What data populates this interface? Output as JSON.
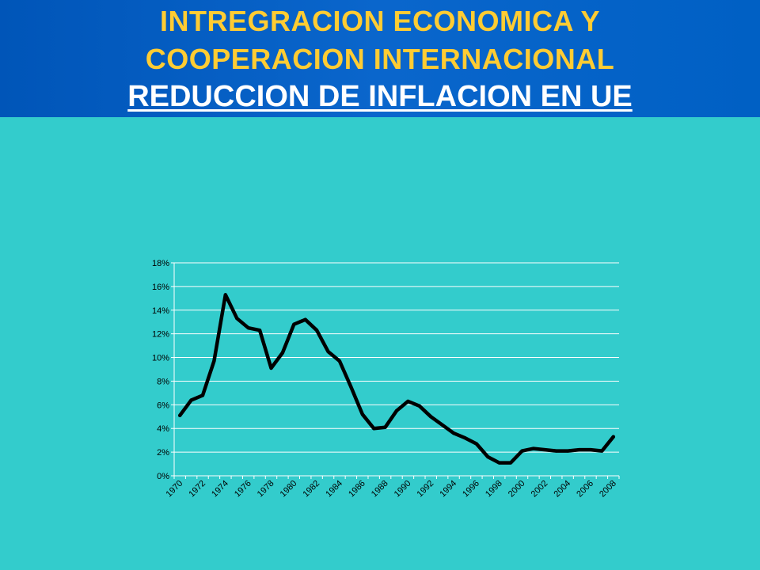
{
  "header": {
    "title_line1": "INTREGRACION ECONOMICA Y",
    "title_line2": "COOPERACION INTERNACIONAL",
    "subtitle": "REDUCCION DE INFLACION EN UE"
  },
  "colors": {
    "background": "#33cccc",
    "header": "#0060c4",
    "title": "#ffcc33",
    "series": "#000000",
    "grid": "#ffffff"
  },
  "chart_data": {
    "type": "line",
    "title": "",
    "xlabel": "",
    "ylabel": "",
    "grid": true,
    "ylim": [
      0,
      18
    ],
    "y_ticks": [
      "0%",
      "2%",
      "4%",
      "6%",
      "8%",
      "10%",
      "12%",
      "14%",
      "16%",
      "18%"
    ],
    "x_tick_labels": [
      "1970",
      "1972",
      "1974",
      "1976",
      "1978",
      "1980",
      "1982",
      "1984",
      "1986",
      "1988",
      "1990",
      "1992",
      "1994",
      "1996",
      "1998",
      "2000",
      "2002",
      "2004",
      "2006",
      "2008"
    ],
    "x": [
      1970,
      1971,
      1972,
      1973,
      1974,
      1975,
      1976,
      1977,
      1978,
      1979,
      1980,
      1981,
      1982,
      1983,
      1984,
      1985,
      1986,
      1987,
      1988,
      1989,
      1990,
      1991,
      1992,
      1993,
      1994,
      1995,
      1996,
      1997,
      1998,
      1999,
      2000,
      2001,
      2002,
      2003,
      2004,
      2005,
      2006,
      2007,
      2008
    ],
    "series": [
      {
        "values": [
          5.1,
          6.4,
          6.8,
          9.7,
          15.3,
          13.3,
          12.5,
          12.3,
          9.1,
          10.4,
          12.8,
          13.2,
          12.3,
          10.5,
          9.7,
          7.5,
          5.2,
          4.0,
          4.1,
          5.5,
          6.3,
          5.9,
          5.0,
          4.3,
          3.6,
          3.2,
          2.7,
          1.6,
          1.1,
          1.1,
          2.1,
          2.3,
          2.2,
          2.1,
          2.1,
          2.2,
          2.2,
          2.1,
          3.3
        ]
      }
    ]
  }
}
